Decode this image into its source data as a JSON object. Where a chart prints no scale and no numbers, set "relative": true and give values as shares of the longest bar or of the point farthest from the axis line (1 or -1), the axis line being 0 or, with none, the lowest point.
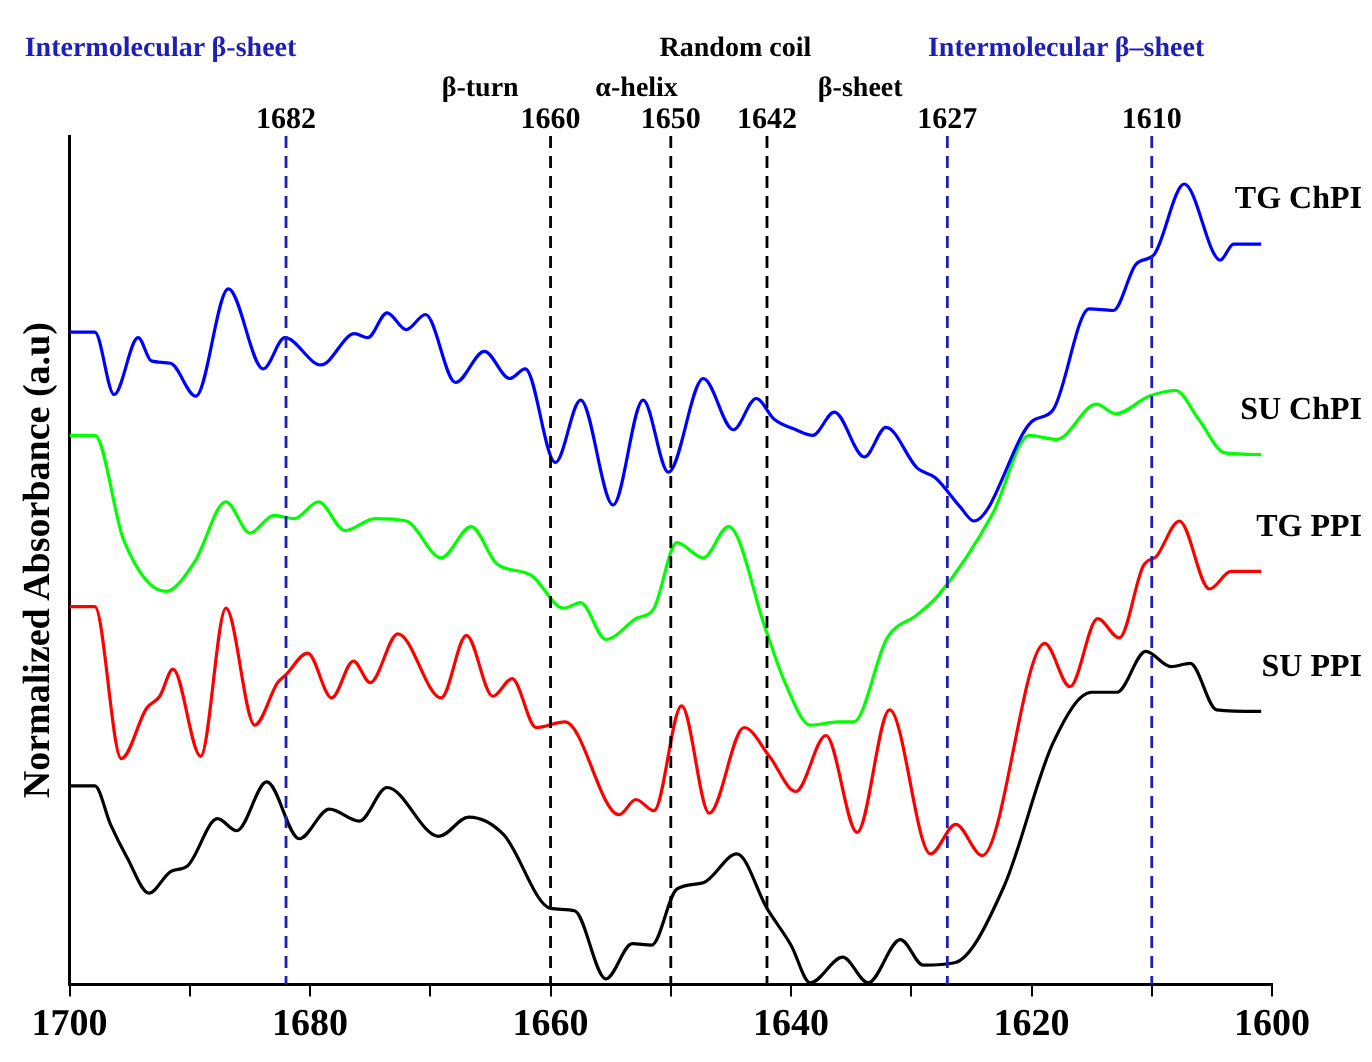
{
  "chart_data": {
    "type": "line",
    "relative": true,
    "ylabel": "Normalized Absorbance (a.u)",
    "xlim": [
      1700,
      1600
    ],
    "xticks": [
      1700,
      {
        "value": 1690,
        "label": null
      },
      1680,
      {
        "value": 1670,
        "label": null
      },
      1660,
      {
        "value": 1650,
        "label": null
      },
      1640,
      {
        "value": 1630,
        "label": null
      },
      1620,
      {
        "value": 1610,
        "label": null
      },
      1600
    ],
    "grid": false,
    "legend": false,
    "marker": "none",
    "line_style": "solid",
    "series": [
      {
        "name": "TG ChPI",
        "color": "#0000ff",
        "x": [
          1700,
          1697.9,
          1696.3,
          1694.3,
          1693.2,
          1691.6,
          1689.5,
          1686.8,
          1683.9,
          1682.1,
          1679.1,
          1676.3,
          1675.2,
          1673.6,
          1672.0,
          1670.4,
          1667.9,
          1665.5,
          1663.4,
          1662.1,
          1659.6,
          1657.5,
          1654.8,
          1652.3,
          1650.2,
          1647.3,
          1644.8,
          1642.9,
          1641.4,
          1639.6,
          1638.2,
          1636.4,
          1633.9,
          1632.1,
          1629.5,
          1628.0,
          1625.9,
          1624.8,
          1620.0,
          1618.2,
          1615.2,
          1613.2,
          1611.3,
          1609.8,
          1607.3,
          1604.3,
          1603.2,
          1600.9
        ],
        "values": [
          0.815,
          0.815,
          0.737,
          0.808,
          0.779,
          0.776,
          0.735,
          0.869,
          0.769,
          0.808,
          0.774,
          0.813,
          0.808,
          0.839,
          0.818,
          0.837,
          0.752,
          0.791,
          0.757,
          0.769,
          0.652,
          0.73,
          0.599,
          0.73,
          0.64,
          0.757,
          0.693,
          0.732,
          0.706,
          0.693,
          0.686,
          0.715,
          0.659,
          0.696,
          0.645,
          0.633,
          0.596,
          0.579,
          0.703,
          0.718,
          0.844,
          0.842,
          0.9,
          0.912,
          1.0,
          0.905,
          0.925,
          0.925
        ]
      },
      {
        "name": "SU ChPI",
        "color": "#00ff00",
        "x": [
          1700,
          1697.9,
          1695.5,
          1692.0,
          1689.6,
          1687.0,
          1685.0,
          1683.0,
          1681.3,
          1679.3,
          1677.1,
          1674.6,
          1672.0,
          1669.1,
          1666.6,
          1664.5,
          1661.6,
          1658.9,
          1657.5,
          1655.4,
          1652.9,
          1651.4,
          1649.5,
          1647.3,
          1645.2,
          1642.1,
          1640.5,
          1638.4,
          1636.1,
          1634.8,
          1632.0,
          1629.5,
          1627.7,
          1623.2,
          1620.2,
          1617.9,
          1614.6,
          1613.0,
          1610.2,
          1608.0,
          1606.1,
          1603.9,
          1600.9
        ],
        "values": [
          0.686,
          0.686,
          0.555,
          0.491,
          0.528,
          0.603,
          0.564,
          0.586,
          0.582,
          0.603,
          0.567,
          0.582,
          0.579,
          0.533,
          0.572,
          0.526,
          0.511,
          0.47,
          0.477,
          0.431,
          0.457,
          0.47,
          0.552,
          0.533,
          0.572,
          0.443,
          0.377,
          0.324,
          0.328,
          0.328,
          0.433,
          0.462,
          0.487,
          0.589,
          0.686,
          0.681,
          0.725,
          0.713,
          0.735,
          0.742,
          0.706,
          0.664,
          0.662
        ]
      },
      {
        "name": "TG PPI",
        "color": "#ff0000",
        "x": [
          1700,
          1697.9,
          1695.7,
          1693.6,
          1692.5,
          1691.4,
          1689.1,
          1687.0,
          1684.6,
          1682.7,
          1682.0,
          1680.2,
          1678.2,
          1676.4,
          1675.0,
          1672.7,
          1669.1,
          1667.0,
          1664.8,
          1663.2,
          1661.2,
          1658.8,
          1654.3,
          1652.9,
          1651.4,
          1649.1,
          1646.8,
          1643.9,
          1641.8,
          1639.6,
          1637.1,
          1634.5,
          1631.8,
          1628.4,
          1626.3,
          1624.1,
          1618.9,
          1616.8,
          1614.5,
          1612.7,
          1610.7,
          1609.6,
          1607.7,
          1605.2,
          1603.4,
          1600.9
        ],
        "values": [
          0.472,
          0.472,
          0.282,
          0.345,
          0.36,
          0.394,
          0.285,
          0.47,
          0.324,
          0.377,
          0.387,
          0.414,
          0.358,
          0.404,
          0.377,
          0.438,
          0.358,
          0.436,
          0.36,
          0.382,
          0.321,
          0.328,
          0.212,
          0.231,
          0.217,
          0.348,
          0.214,
          0.321,
          0.285,
          0.241,
          0.311,
          0.19,
          0.343,
          0.163,
          0.2,
          0.161,
          0.426,
          0.372,
          0.457,
          0.433,
          0.523,
          0.535,
          0.579,
          0.494,
          0.516,
          0.516
        ]
      },
      {
        "name": "SU PPI",
        "color": "#000000",
        "x": [
          1700,
          1697.9,
          1696.6,
          1695.2,
          1693.4,
          1691.6,
          1690.2,
          1687.7,
          1686.1,
          1683.6,
          1680.9,
          1678.4,
          1675.9,
          1673.6,
          1669.3,
          1666.8,
          1663.9,
          1660.0,
          1658.0,
          1655.4,
          1653.2,
          1651.6,
          1649.5,
          1647.3,
          1644.5,
          1642.0,
          1640.0,
          1638.4,
          1635.7,
          1633.6,
          1630.9,
          1629.0,
          1626.4,
          1622.3,
          1618.2,
          1615.0,
          1612.9,
          1610.5,
          1608.4,
          1606.8,
          1604.6,
          1600.9
        ],
        "values": [
          0.248,
          0.248,
          0.2,
          0.158,
          0.114,
          0.141,
          0.148,
          0.207,
          0.192,
          0.253,
          0.182,
          0.219,
          0.204,
          0.246,
          0.185,
          0.209,
          0.187,
          0.095,
          0.092,
          0.007,
          0.051,
          0.049,
          0.119,
          0.127,
          0.163,
          0.095,
          0.049,
          0.002,
          0.034,
          0.002,
          0.056,
          0.024,
          0.027,
          0.122,
          0.302,
          0.365,
          0.365,
          0.416,
          0.397,
          0.401,
          0.343,
          0.341
        ]
      }
    ],
    "ref_lines": [
      {
        "axis": "x",
        "value": 1682,
        "label": "1682",
        "color": "#1f1fb4",
        "line_style": "dashed"
      },
      {
        "axis": "x",
        "value": 1660,
        "label": "1660",
        "color": "#000000",
        "line_style": "dashed"
      },
      {
        "axis": "x",
        "value": 1650,
        "label": "1650",
        "color": "#000000",
        "line_style": "dashed"
      },
      {
        "axis": "x",
        "value": 1642,
        "label": "1642",
        "color": "#000000",
        "line_style": "dashed"
      },
      {
        "axis": "x",
        "value": 1627,
        "label": "1627",
        "color": "#1f1fb4",
        "line_style": "dashed"
      },
      {
        "axis": "x",
        "value": 1610,
        "label": "1610",
        "color": "#1f1fb4",
        "line_style": "dashed"
      }
    ],
    "annotations": [
      "Intermolecular β-sheet",
      "β-turn",
      "α-helix",
      "Random coil",
      "β-sheet",
      "Intermolecular β–sheet"
    ]
  }
}
